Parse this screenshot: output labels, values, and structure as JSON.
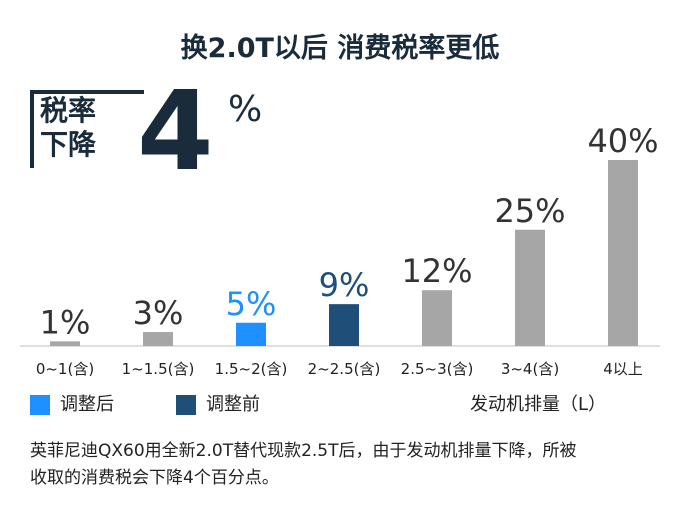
{
  "title": "换2.0T以后 消费税率更低",
  "rate_callout": {
    "label_line1": "税率",
    "label_line2": "下降",
    "value": "4",
    "unit": "%"
  },
  "chart_data": {
    "type": "bar",
    "categories": [
      "0~1(含)",
      "1~1.5(含)",
      "1.5~2(含)",
      "2~2.5(含)",
      "2.5~3(含)",
      "3~4(含)",
      "4以上"
    ],
    "values": [
      1,
      3,
      5,
      9,
      12,
      25,
      40
    ],
    "data_labels": [
      "1%",
      "3%",
      "5%",
      "9%",
      "12%",
      "25%",
      "40%"
    ],
    "bar_roles": [
      "other",
      "other",
      "after",
      "before",
      "other",
      "other",
      "other"
    ],
    "ylim": [
      0,
      40
    ],
    "colors": {
      "after": "#1e90ff",
      "before": "#1f4e79",
      "other": "#a6a6a6",
      "axis": "#bfbfbf"
    },
    "label_colors": {
      "after": "#1e90ff",
      "before": "#1f4e79",
      "other": "#333333"
    },
    "xlabel": "发动机排量（L）",
    "legend": [
      {
        "name": "调整后",
        "color": "#1e90ff"
      },
      {
        "name": "调整前",
        "color": "#1f4e79"
      }
    ]
  },
  "caption_line1": "英菲尼迪QX60用全新2.0T替代现款2.5T后，由于发动机排量下降，所被",
  "caption_line2": "收取的消费税会下降4个百分点。"
}
